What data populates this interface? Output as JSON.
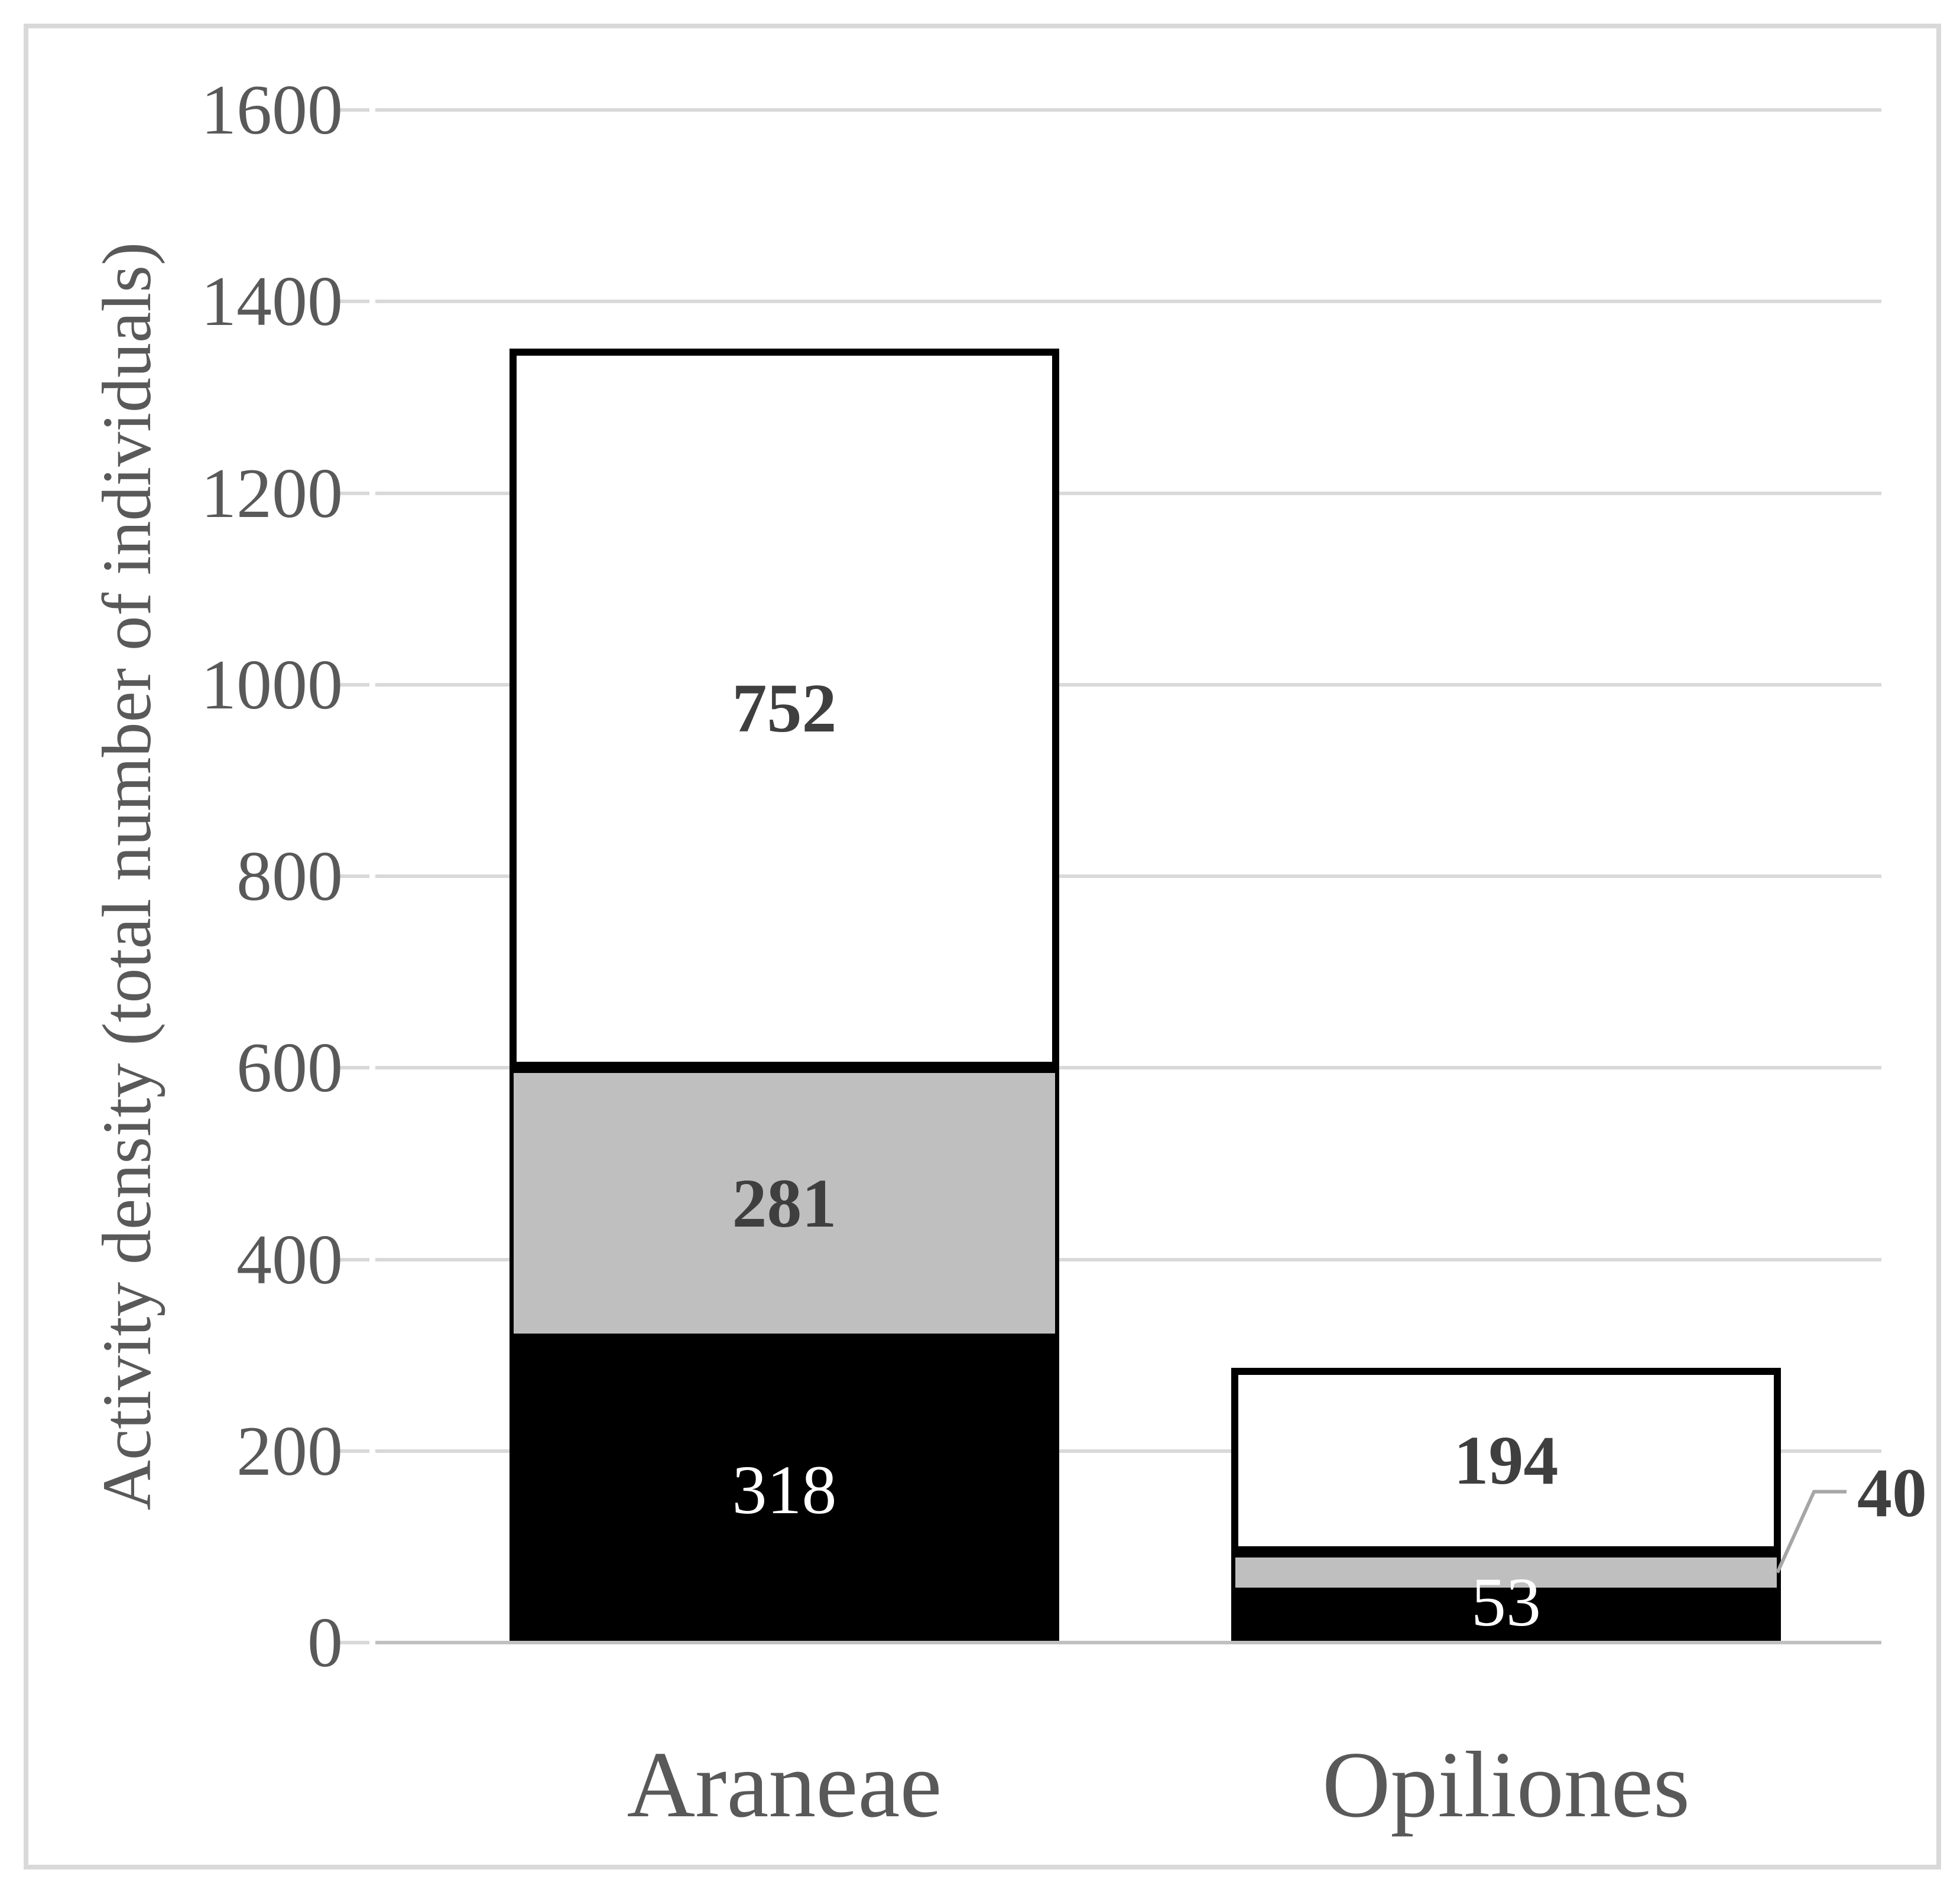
{
  "chart_data": {
    "type": "bar",
    "stacked": true,
    "title": "",
    "xlabel": "",
    "ylabel": "Activity density (total number of individuals)",
    "categories": [
      "Araneae",
      "Opiliones"
    ],
    "series": [
      {
        "name": "black-segment",
        "fill": "#000000",
        "label_color": "#ffffff",
        "values": [
          318,
          53
        ]
      },
      {
        "name": "gray-segment",
        "fill": "#bfbfbf",
        "label_color": "#3f3f3f",
        "values": [
          281,
          40
        ]
      },
      {
        "name": "white-segment",
        "fill": "#ffffff",
        "label_color": "#3f3f3f",
        "values": [
          752,
          194
        ]
      }
    ],
    "ylim": [
      0,
      1600
    ],
    "yticks": [
      0,
      200,
      400,
      600,
      800,
      1000,
      1200,
      1400,
      1600
    ],
    "grid": "horizontal",
    "legend": "none",
    "callout": {
      "category_index": 1,
      "series_index": 1,
      "label": "40"
    },
    "colors": {
      "grid": "#d9d9d9",
      "axis_line": "#c0c0c0",
      "axis_text": "#595959",
      "bar_border": "#000000",
      "leader_line": "#a6a6a6",
      "frame_border": "#d9d9d9",
      "background": "#ffffff"
    }
  }
}
